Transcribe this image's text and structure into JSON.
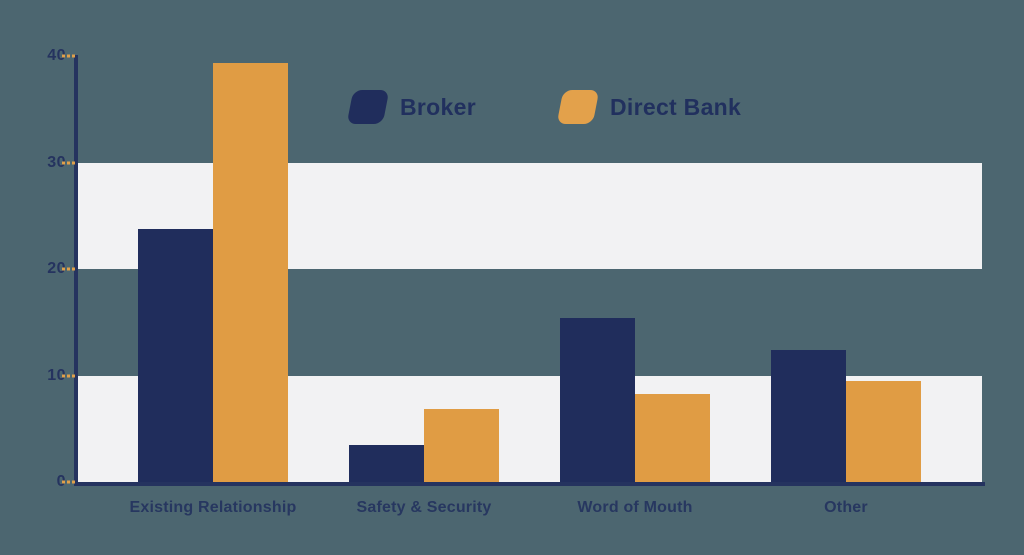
{
  "chart_data": {
    "type": "bar",
    "title": "",
    "categories": [
      "Existing Relationship",
      "Safety & Security",
      "Word of Mouth",
      "Other"
    ],
    "series": [
      {
        "name": "Broker",
        "color": "#202d5c",
        "values": [
          23.8,
          3.5,
          15.4,
          12.4
        ]
      },
      {
        "name": "Direct Bank",
        "color": "#e09c44",
        "values": [
          39.3,
          6.9,
          8.3,
          9.5
        ]
      }
    ],
    "xlabel": "",
    "ylabel": "",
    "ylim": [
      0,
      40
    ],
    "y_ticks": [
      40,
      30,
      20,
      10,
      0
    ],
    "grid": "alternating-bands",
    "bands": [
      [
        20,
        30
      ],
      [
        0,
        10
      ]
    ],
    "legend_position": "top-center",
    "colors": {
      "background": "#4c6670",
      "band": "#f2f2f3",
      "axis": "#25335f",
      "tick_dash": "#e0a04a",
      "label_text": "#273760"
    }
  }
}
